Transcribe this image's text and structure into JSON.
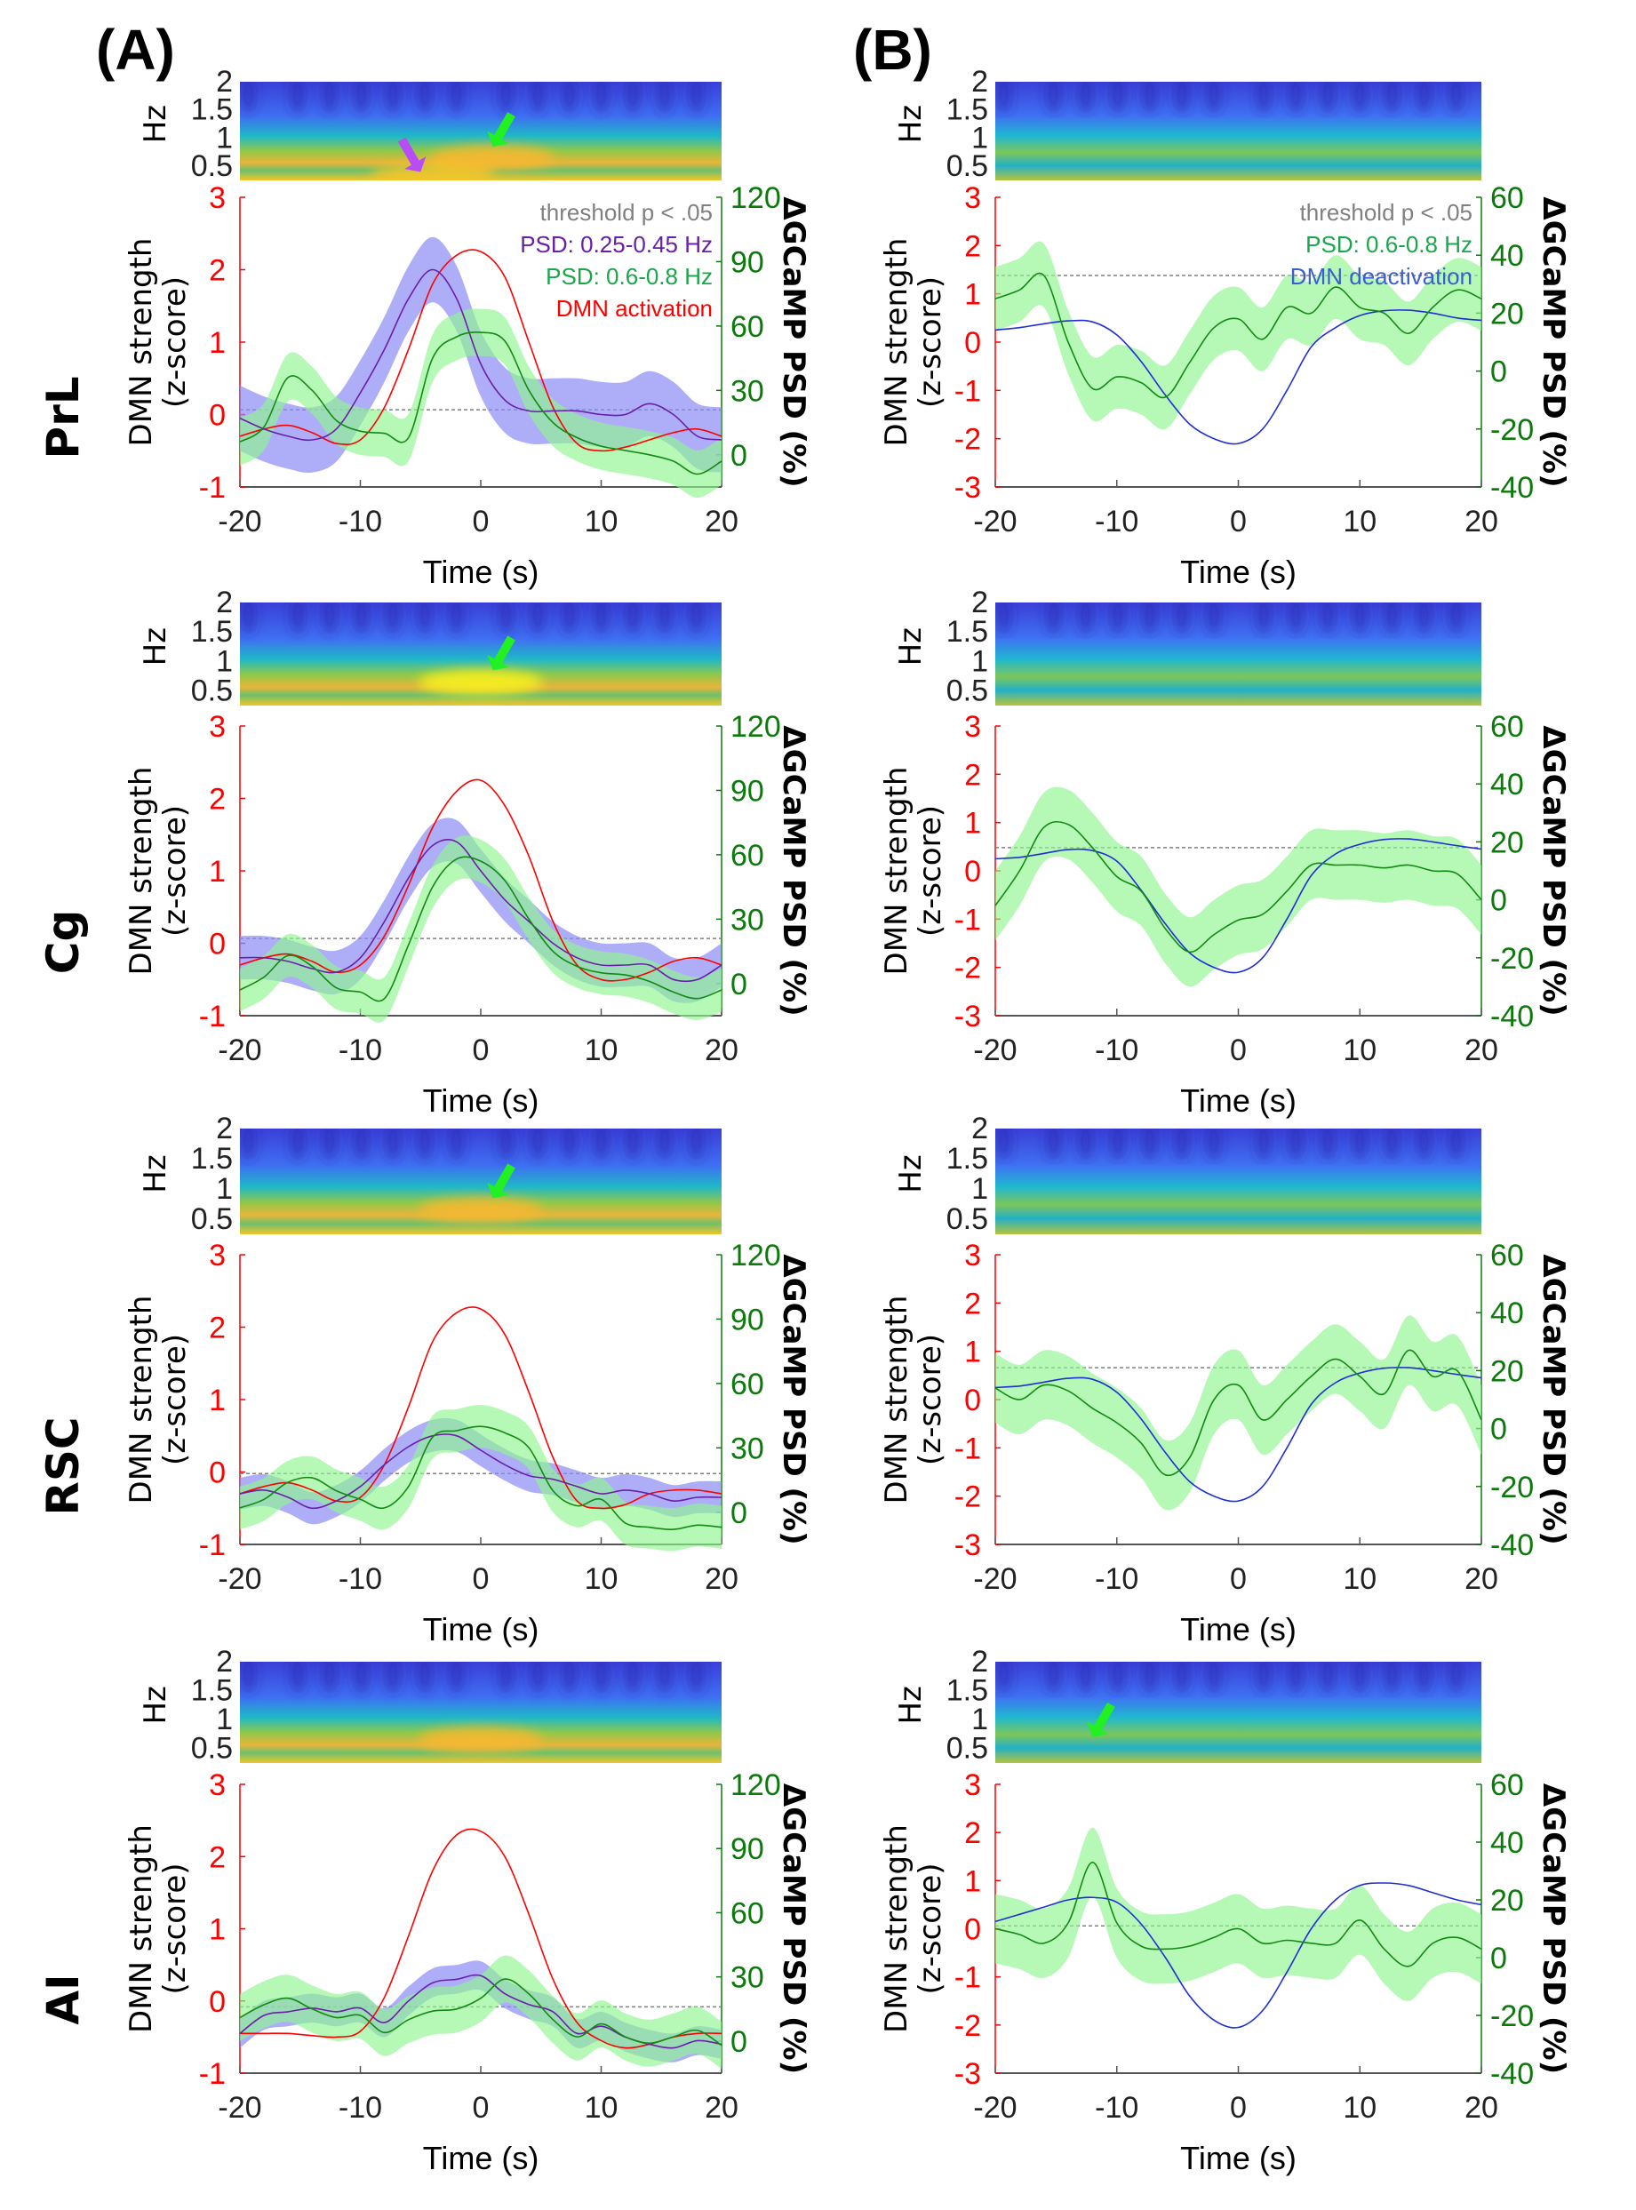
{
  "figure": {
    "panel_labels": [
      "(A)",
      "(B)"
    ],
    "rows": [
      "PrL",
      "Cg",
      "RSC",
      "AI"
    ]
  },
  "colors": {
    "dmn_activation": "#ff0000",
    "dmn_deactivation": "#1f2fd6",
    "psd_low_line": "#6a1fa8",
    "psd_low_band": "#8c8cf5",
    "psd_high_line": "#138a13",
    "psd_high_band": "#8ff58f",
    "threshold": "#808080",
    "left_axis": "#ff0000",
    "right_axis": "#0b7a0b",
    "legend_psd_high": "#1aa64a",
    "legend_psd_low": "#6a1fa8",
    "legend_deact": "#3a5fd0"
  },
  "chart_data": [
    {
      "id": "A-PrL",
      "column": "A",
      "row": "PrL",
      "type": "line",
      "xlabel": "Time (s)",
      "ylabel": [
        "DMN strength",
        "(z-score)"
      ],
      "y2label": "ΔGCaMP PSD (%)",
      "xlim": [
        -20,
        20
      ],
      "ylim": [
        -1,
        3
      ],
      "y2lim": [
        -15,
        120
      ],
      "xticks": [
        -20,
        -10,
        0,
        10,
        20
      ],
      "yticks": [
        -1,
        0,
        1,
        2,
        3
      ],
      "y2ticks": [
        0,
        30,
        60,
        90,
        120
      ],
      "threshold_y2": 21,
      "legend": [
        {
          "text": "threshold p < .05",
          "key": "threshold"
        },
        {
          "text": "PSD: 0.25-0.45 Hz",
          "key": "psd_low"
        },
        {
          "text": "PSD: 0.6-0.8 Hz",
          "key": "psd_high"
        },
        {
          "text": "DMN activation",
          "key": "dmn"
        }
      ],
      "spectrogram": {
        "ylabel": "Hz",
        "yticks": [
          "2",
          "1.5",
          "1",
          "0.5"
        ],
        "arrows": [
          {
            "color": "#b84cf5",
            "t": -5,
            "hz": 0.4
          },
          {
            "color": "#22f022",
            "t": 1,
            "hz": 0.85
          }
        ]
      },
      "x": [
        -20,
        -18,
        -16,
        -14,
        -12,
        -10,
        -8,
        -6,
        -4,
        -2,
        0,
        2,
        4,
        6,
        8,
        10,
        12,
        14,
        16,
        18,
        20
      ],
      "dmn": [
        -0.3,
        -0.2,
        -0.15,
        -0.25,
        -0.4,
        -0.35,
        0.1,
        0.9,
        1.8,
        2.2,
        2.25,
        1.9,
        1.0,
        0.1,
        -0.4,
        -0.5,
        -0.45,
        -0.35,
        -0.25,
        -0.2,
        -0.3
      ],
      "psd_low": {
        "mean": [
          -0.05,
          -0.2,
          -0.3,
          -0.35,
          -0.2,
          0.3,
          0.9,
          1.6,
          2.0,
          1.6,
          0.7,
          0.2,
          0.05,
          0.05,
          0.05,
          0.0,
          0.0,
          0.15,
          0.0,
          -0.3,
          -0.35
        ],
        "half_width": 0.45
      },
      "psd_high": {
        "mean": [
          6,
          13,
          36,
          30,
          16,
          11,
          10,
          8,
          45,
          55,
          57,
          53,
          30,
          15,
          8,
          4,
          2,
          0,
          -3,
          -9,
          -3
        ],
        "half_width": 11
      }
    },
    {
      "id": "B-PrL",
      "column": "B",
      "row": "PrL",
      "type": "line",
      "xlabel": "Time (s)",
      "ylabel": [
        "DMN strength",
        "(z-score)"
      ],
      "y2label": "ΔGCaMP PSD (%)",
      "xlim": [
        -20,
        20
      ],
      "ylim": [
        -3,
        3
      ],
      "y2lim": [
        -40,
        60
      ],
      "xticks": [
        -20,
        -10,
        0,
        10,
        20
      ],
      "yticks": [
        -3,
        -2,
        -1,
        0,
        1,
        2,
        3
      ],
      "y2ticks": [
        -40,
        -20,
        0,
        20,
        40,
        60
      ],
      "threshold_y2": 33,
      "legend": [
        {
          "text": "threshold p < .05",
          "key": "threshold"
        },
        {
          "text": "PSD: 0.6-0.8 Hz",
          "key": "psd_high"
        },
        {
          "text": "DMN deactivation",
          "key": "dmn"
        }
      ],
      "spectrogram": {
        "ylabel": "Hz",
        "yticks": [
          "2",
          "1.5",
          "1",
          "0.5"
        ],
        "arrows": []
      },
      "x": [
        -20,
        -18,
        -16,
        -14,
        -12,
        -10,
        -8,
        -6,
        -4,
        -2,
        0,
        2,
        4,
        6,
        8,
        10,
        12,
        14,
        16,
        18,
        20
      ],
      "dmn": [
        0.25,
        0.3,
        0.38,
        0.44,
        0.42,
        0.15,
        -0.4,
        -1.1,
        -1.7,
        -2.0,
        -2.1,
        -1.8,
        -1.0,
        -0.1,
        0.3,
        0.55,
        0.65,
        0.66,
        0.6,
        0.5,
        0.45
      ],
      "psd_high": {
        "mean": [
          25,
          28,
          33,
          10,
          -6,
          -2,
          -4,
          -9,
          3,
          15,
          18,
          11,
          22,
          20,
          29,
          22,
          20,
          13,
          22,
          28,
          25
        ],
        "half_width": 11
      }
    },
    {
      "id": "A-Cg",
      "column": "A",
      "row": "Cg",
      "type": "line",
      "xlabel": "Time (s)",
      "ylabel": [
        "DMN strength",
        "(z-score)"
      ],
      "y2label": "ΔGCaMP PSD (%)",
      "xlim": [
        -20,
        20
      ],
      "ylim": [
        -1,
        3
      ],
      "y2lim": [
        -15,
        120
      ],
      "xticks": [
        -20,
        -10,
        0,
        10,
        20
      ],
      "yticks": [
        -1,
        0,
        1,
        2,
        3
      ],
      "y2ticks": [
        0,
        30,
        60,
        90,
        120
      ],
      "threshold_y2": 21,
      "spectrogram": {
        "ylabel": "Hz",
        "yticks": [
          "2",
          "1.5",
          "1",
          "0.5"
        ],
        "arrows": [
          {
            "color": "#22f022",
            "t": 1,
            "hz": 0.85
          }
        ]
      },
      "x": [
        -20,
        -18,
        -16,
        -14,
        -12,
        -10,
        -8,
        -6,
        -4,
        -2,
        0,
        2,
        4,
        6,
        8,
        10,
        12,
        14,
        16,
        18,
        20
      ],
      "dmn": [
        -0.3,
        -0.2,
        -0.15,
        -0.25,
        -0.4,
        -0.3,
        0.1,
        0.8,
        1.6,
        2.1,
        2.25,
        1.9,
        1.2,
        0.3,
        -0.3,
        -0.5,
        -0.5,
        -0.4,
        -0.25,
        -0.2,
        -0.3
      ],
      "psd_low": {
        "mean": [
          -0.2,
          -0.2,
          -0.25,
          -0.35,
          -0.4,
          -0.2,
          0.3,
          0.9,
          1.35,
          1.4,
          1.0,
          0.6,
          0.3,
          0.0,
          -0.2,
          -0.3,
          -0.3,
          -0.3,
          -0.5,
          -0.5,
          -0.3
        ],
        "half_width": 0.3
      },
      "psd_high": {
        "mean": [
          -3,
          3,
          13,
          8,
          -2,
          -4,
          -7,
          18,
          45,
          58,
          57,
          48,
          30,
          15,
          8,
          5,
          4,
          1,
          -4,
          -7,
          -3
        ],
        "half_width": 10
      }
    },
    {
      "id": "B-Cg",
      "column": "B",
      "row": "Cg",
      "type": "line",
      "xlabel": "Time (s)",
      "ylabel": [
        "DMN strength",
        "(z-score)"
      ],
      "y2label": "ΔGCaMP PSD (%)",
      "xlim": [
        -20,
        20
      ],
      "ylim": [
        -3,
        3
      ],
      "y2lim": [
        -40,
        60
      ],
      "xticks": [
        -20,
        -10,
        0,
        10,
        20
      ],
      "yticks": [
        -3,
        -2,
        -1,
        0,
        1,
        2,
        3
      ],
      "y2ticks": [
        -40,
        -20,
        0,
        20,
        40,
        60
      ],
      "threshold_y2": 18,
      "spectrogram": {
        "ylabel": "Hz",
        "yticks": [
          "2",
          "1.5",
          "1",
          "0.5"
        ],
        "arrows": []
      },
      "x": [
        -20,
        -18,
        -16,
        -14,
        -12,
        -10,
        -8,
        -6,
        -4,
        -2,
        0,
        2,
        4,
        6,
        8,
        10,
        12,
        14,
        16,
        18,
        20
      ],
      "dmn": [
        0.25,
        0.28,
        0.36,
        0.44,
        0.42,
        0.2,
        -0.4,
        -1.1,
        -1.7,
        -2.0,
        -2.1,
        -1.8,
        -1.0,
        -0.1,
        0.35,
        0.55,
        0.65,
        0.66,
        0.6,
        0.52,
        0.45
      ],
      "psd_high": {
        "mean": [
          -2,
          10,
          25,
          26,
          18,
          8,
          3,
          -10,
          -18,
          -12,
          -7,
          -5,
          3,
          12,
          12,
          12,
          11,
          12,
          10,
          9,
          0
        ],
        "half_width": 12
      }
    },
    {
      "id": "A-RSC",
      "column": "A",
      "row": "RSC",
      "type": "line",
      "xlabel": "Time (s)",
      "ylabel": [
        "DMN strength",
        "(z-score)"
      ],
      "y2label": "ΔGCaMP PSD (%)",
      "xlim": [
        -20,
        20
      ],
      "ylim": [
        -1,
        3
      ],
      "y2lim": [
        -15,
        120
      ],
      "xticks": [
        -20,
        -10,
        0,
        10,
        20
      ],
      "yticks": [
        -1,
        0,
        1,
        2,
        3
      ],
      "y2ticks": [
        0,
        30,
        60,
        90,
        120
      ],
      "threshold_y2": 18,
      "spectrogram": {
        "ylabel": "Hz",
        "yticks": [
          "2",
          "1.5",
          "1",
          "0.5"
        ],
        "arrows": [
          {
            "color": "#22f022",
            "t": 1,
            "hz": 0.85
          }
        ]
      },
      "x": [
        -20,
        -18,
        -16,
        -14,
        -12,
        -10,
        -8,
        -6,
        -4,
        -2,
        0,
        2,
        4,
        6,
        8,
        10,
        12,
        14,
        16,
        18,
        20
      ],
      "dmn": [
        -0.3,
        -0.2,
        -0.15,
        -0.25,
        -0.4,
        -0.35,
        0.1,
        0.9,
        1.8,
        2.2,
        2.25,
        1.9,
        1.1,
        0.2,
        -0.4,
        -0.5,
        -0.45,
        -0.3,
        -0.25,
        -0.25,
        -0.3
      ],
      "psd_low": {
        "mean": [
          -0.3,
          -0.25,
          -0.35,
          -0.5,
          -0.4,
          -0.2,
          0.1,
          0.35,
          0.5,
          0.5,
          0.3,
          0.1,
          -0.05,
          -0.1,
          -0.2,
          -0.3,
          -0.25,
          -0.3,
          -0.4,
          -0.35,
          -0.35
        ],
        "half_width": 0.22
      },
      "psd_high": {
        "mean": [
          2,
          6,
          14,
          16,
          10,
          6,
          2,
          12,
          35,
          38,
          40,
          37,
          30,
          10,
          3,
          6,
          -5,
          -7,
          -8,
          -6,
          -7
        ],
        "half_width": 10
      }
    },
    {
      "id": "B-RSC",
      "column": "B",
      "row": "RSC",
      "type": "line",
      "xlabel": "Time (s)",
      "ylabel": [
        "DMN strength",
        "(z-score)"
      ],
      "y2label": "ΔGCaMP PSD (%)",
      "xlim": [
        -20,
        20
      ],
      "ylim": [
        -3,
        3
      ],
      "y2lim": [
        -40,
        60
      ],
      "xticks": [
        -20,
        -10,
        0,
        10,
        20
      ],
      "yticks": [
        -3,
        -2,
        -1,
        0,
        1,
        2,
        3
      ],
      "y2ticks": [
        -40,
        -20,
        0,
        20,
        40,
        60
      ],
      "threshold_y2": 21,
      "spectrogram": {
        "ylabel": "Hz",
        "yticks": [
          "2",
          "1.5",
          "1",
          "0.5"
        ],
        "arrows": []
      },
      "x": [
        -20,
        -18,
        -16,
        -14,
        -12,
        -10,
        -8,
        -6,
        -4,
        -2,
        0,
        2,
        4,
        6,
        8,
        10,
        12,
        14,
        16,
        18,
        20
      ],
      "dmn": [
        0.25,
        0.28,
        0.36,
        0.44,
        0.42,
        0.15,
        -0.4,
        -1.1,
        -1.7,
        -2.0,
        -2.1,
        -1.8,
        -1.0,
        -0.1,
        0.35,
        0.55,
        0.65,
        0.66,
        0.6,
        0.52,
        0.45
      ],
      "psd_high": {
        "mean": [
          14,
          10,
          15,
          13,
          7,
          2,
          -5,
          -16,
          -10,
          10,
          15,
          3,
          10,
          18,
          24,
          18,
          12,
          27,
          18,
          20,
          3
        ],
        "half_width": 12
      }
    },
    {
      "id": "A-AI",
      "column": "A",
      "row": "AI",
      "type": "line",
      "xlabel": "Time (s)",
      "ylabel": [
        "DMN strength",
        "(z-score)"
      ],
      "y2label": "ΔGCaMP PSD (%)",
      "xlim": [
        -20,
        20
      ],
      "ylim": [
        -1,
        3
      ],
      "y2lim": [
        -15,
        120
      ],
      "xticks": [
        -20,
        -10,
        0,
        10,
        20
      ],
      "yticks": [
        -1,
        0,
        1,
        2,
        3
      ],
      "y2ticks": [
        0,
        30,
        60,
        90,
        120
      ],
      "threshold_y2": 16,
      "spectrogram": {
        "ylabel": "Hz",
        "yticks": [
          "2",
          "1.5",
          "1",
          "0.5"
        ],
        "arrows": []
      },
      "x": [
        -20,
        -18,
        -16,
        -14,
        -12,
        -10,
        -8,
        -6,
        -4,
        -2,
        0,
        2,
        4,
        6,
        8,
        10,
        12,
        14,
        16,
        18,
        20
      ],
      "dmn": [
        -0.45,
        -0.45,
        -0.45,
        -0.48,
        -0.5,
        -0.42,
        0.05,
        0.9,
        1.8,
        2.3,
        2.35,
        2.0,
        1.2,
        0.3,
        -0.3,
        -0.55,
        -0.65,
        -0.6,
        -0.5,
        -0.45,
        -0.45
      ],
      "psd_low": {
        "mean": [
          -0.45,
          -0.2,
          -0.15,
          -0.1,
          -0.15,
          -0.1,
          -0.3,
          0.0,
          0.25,
          0.3,
          0.35,
          0.1,
          -0.05,
          -0.15,
          -0.45,
          -0.35,
          -0.5,
          -0.6,
          -0.65,
          -0.55,
          -0.6
        ],
        "half_width": 0.2
      },
      "psd_high": {
        "mean": [
          11,
          17,
          20,
          15,
          11,
          12,
          4,
          10,
          14,
          15,
          20,
          29,
          22,
          10,
          2,
          8,
          2,
          -1,
          2,
          5,
          -2
        ],
        "half_width": 11
      }
    },
    {
      "id": "B-AI",
      "column": "B",
      "row": "AI",
      "type": "line",
      "xlabel": "Time (s)",
      "ylabel": [
        "DMN strength",
        "(z-score)"
      ],
      "y2label": "ΔGCaMP PSD (%)",
      "xlim": [
        -20,
        20
      ],
      "ylim": [
        -3,
        3
      ],
      "y2lim": [
        -40,
        60
      ],
      "xticks": [
        -20,
        -10,
        0,
        10,
        20
      ],
      "yticks": [
        -3,
        -2,
        -1,
        0,
        1,
        2,
        3
      ],
      "y2ticks": [
        -40,
        -20,
        0,
        20,
        40,
        60
      ],
      "threshold_y2": 11,
      "spectrogram": {
        "ylabel": "Hz",
        "yticks": [
          "2",
          "1.5",
          "1",
          "0.5"
        ],
        "arrows": [
          {
            "color": "#22f022",
            "t": -12,
            "hz": 0.7
          }
        ]
      },
      "x": [
        -20,
        -18,
        -16,
        -14,
        -12,
        -10,
        -8,
        -6,
        -4,
        -2,
        0,
        2,
        4,
        6,
        8,
        10,
        12,
        14,
        16,
        18,
        20
      ],
      "dmn": [
        0.15,
        0.3,
        0.45,
        0.6,
        0.65,
        0.55,
        0.1,
        -0.6,
        -1.4,
        -1.9,
        -2.05,
        -1.7,
        -0.9,
        0.0,
        0.6,
        0.9,
        0.95,
        0.9,
        0.75,
        0.6,
        0.5
      ],
      "psd_high": {
        "mean": [
          10,
          8,
          5,
          12,
          33,
          12,
          4,
          3,
          4,
          7,
          10,
          5,
          6,
          5,
          5,
          13,
          3,
          -3,
          5,
          7,
          3
        ],
        "half_width": 12
      }
    }
  ],
  "spectrogram_note": "Time-frequency power maps (parula colormap), 0.25–2 Hz"
}
